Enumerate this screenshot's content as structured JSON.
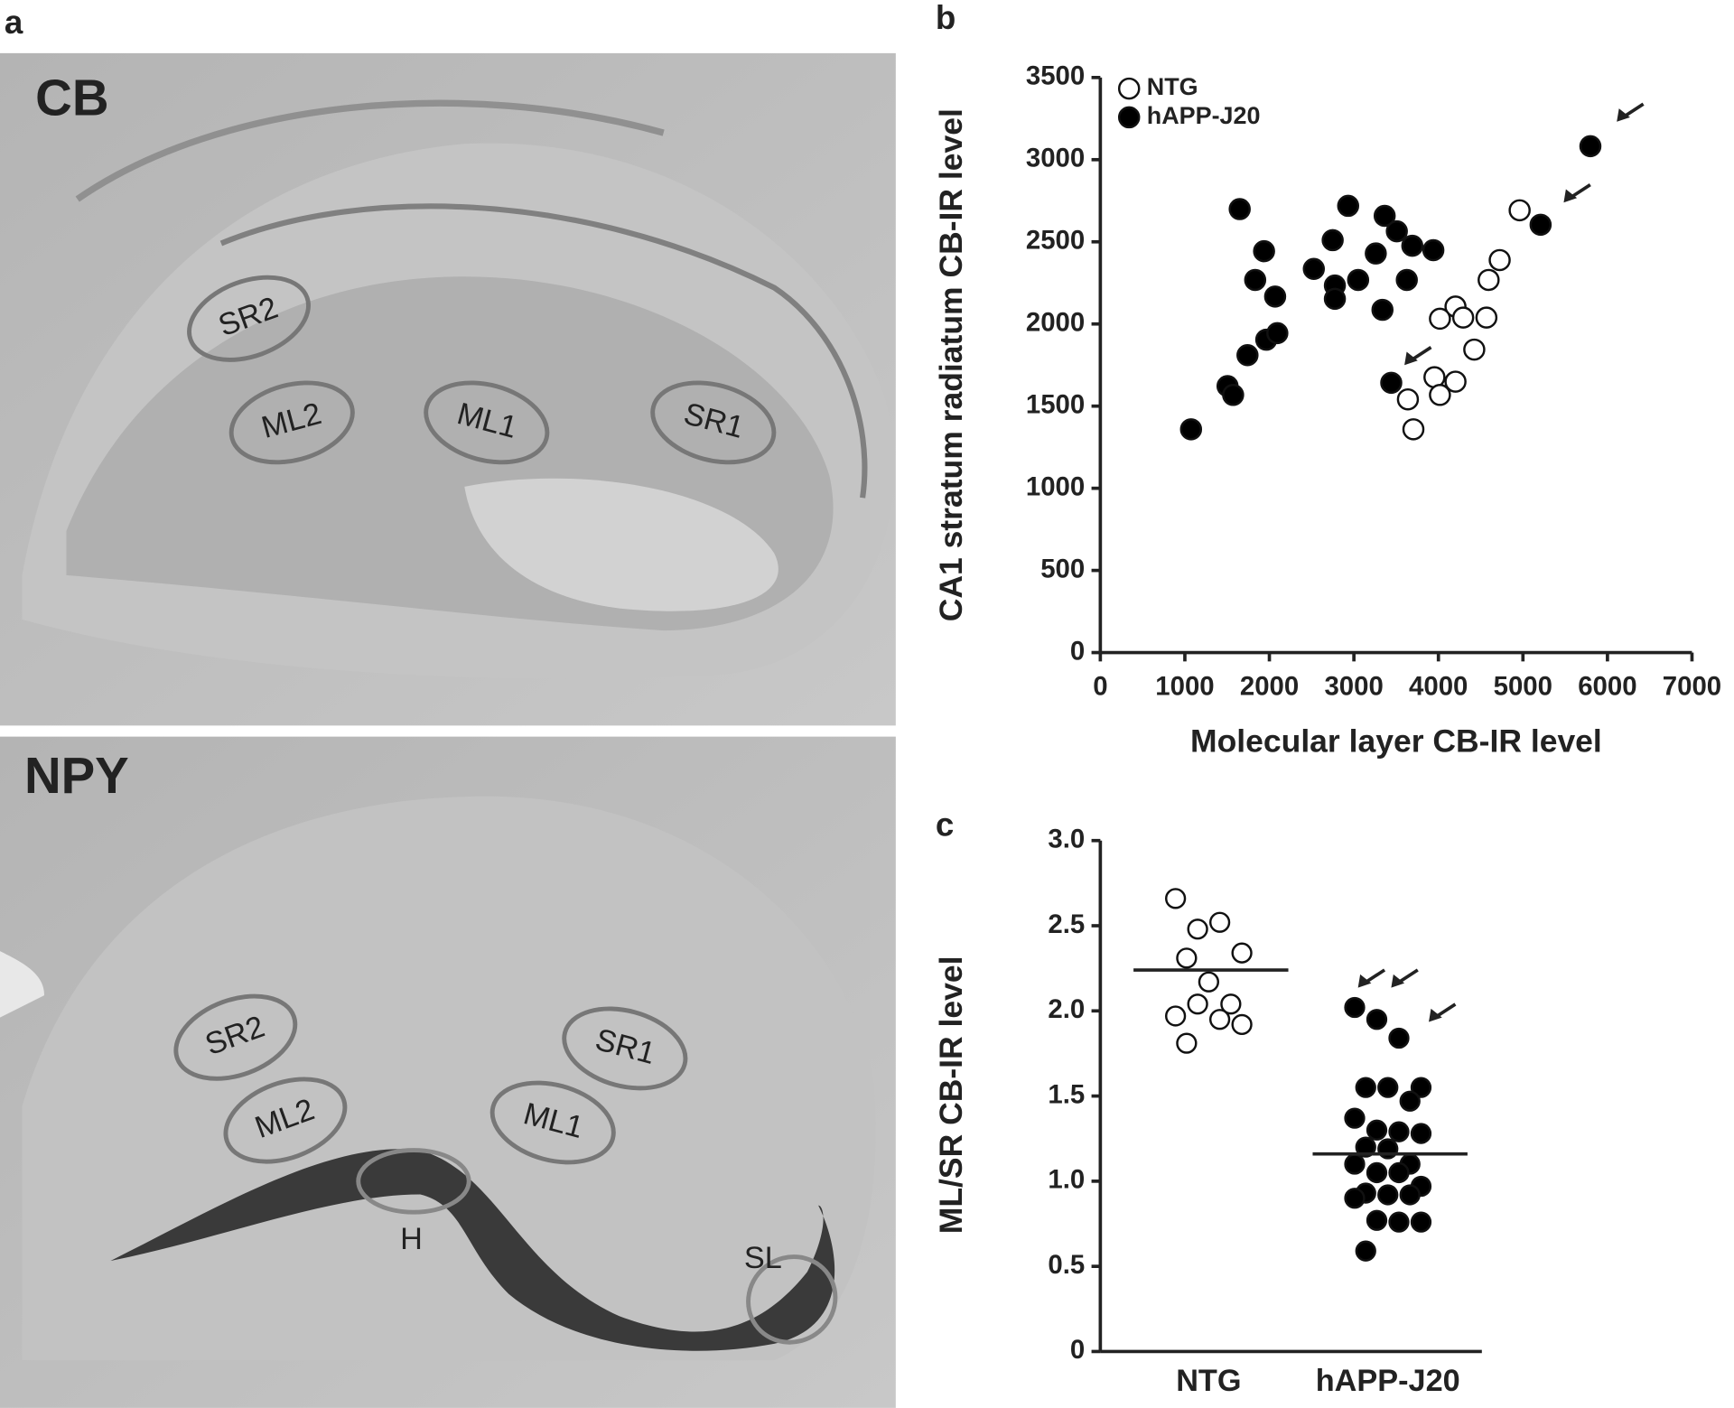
{
  "panel_labels": [
    "a",
    "b",
    "c"
  ],
  "micrographs": [
    {
      "stain": "CB",
      "regions": [
        "SR2",
        "ML2",
        "ML1",
        "SR1"
      ]
    },
    {
      "stain": "NPY",
      "regions": [
        "SR2",
        "SR1",
        "ML2",
        "ML1",
        "H",
        "SL"
      ]
    }
  ],
  "chart_data": [
    {
      "type": "scatter",
      "x_label": "Molecular layer CB-IR level",
      "y_label": "CA1 stratum radiatum CB-IR level",
      "xlim": [
        0,
        7000
      ],
      "ylim": [
        0,
        3500
      ],
      "xticks": [
        0,
        1000,
        2000,
        3000,
        4000,
        5000,
        6000,
        7000
      ],
      "yticks": [
        0,
        500,
        1000,
        1500,
        2000,
        2500,
        3000,
        3500
      ],
      "legend": "top-left",
      "series": [
        {
          "name": "NTG",
          "color": "#ffffff",
          "x": [
            4961,
            4725,
            4594,
            4202,
            4293,
            4568,
            4018,
            4424,
            3953,
            4202,
            4018,
            3639,
            3704
          ],
          "values": [
            2692,
            2389,
            2268,
            2106,
            2039,
            2039,
            2032,
            1844,
            1676,
            1649,
            1568,
            1541,
            1359
          ]
        },
        {
          "name": "hAPP-J20",
          "color": "#000000",
          "x": [
            1073,
            1505,
            1571,
            1649,
            1741,
            1832,
            1937,
            1963,
            2068,
            2094,
            2526,
            2749,
            2775,
            2775,
            2932,
            3050,
            3259,
            3364,
            3338,
            3508,
            3691,
            3626,
            3940,
            3442,
            5209,
            5798
          ],
          "values": [
            1359,
            1622,
            1568,
            2699,
            1810,
            2268,
            2443,
            1904,
            2167,
            1944,
            2335,
            2510,
            2234,
            2153,
            2719,
            2268,
            2429,
            2658,
            2086,
            2564,
            2476,
            2268,
            2449,
            1642,
            2604,
            3082
          ]
        }
      ]
    },
    {
      "type": "strip",
      "y_label": "ML/SR CB-IR level",
      "categories": [
        "NTG",
        "hAPP-J20"
      ],
      "ylim": [
        0,
        3
      ],
      "yticks": [
        0,
        0.5,
        {
          "value": 1,
          "label": "1.0"
        },
        1.5,
        {
          "value": 2,
          "label": "2.0"
        },
        2.5,
        {
          "value": 3,
          "label": "3.0"
        }
      ],
      "groups": [
        {
          "color": "#ffffff",
          "mean": 2.24,
          "values": [
            2.66,
            2.48,
            2.52,
            2.34,
            2.31,
            2.17,
            2.04,
            1.97,
            2.04,
            1.95,
            1.92,
            1.81
          ]
        },
        {
          "color": "#000000",
          "mean": 1.16,
          "values": [
            2.02,
            1.95,
            1.84,
            1.55,
            1.55,
            1.55,
            1.47,
            1.37,
            1.3,
            1.29,
            1.28,
            1.2,
            1.19,
            1.1,
            1.1,
            1.05,
            1.05,
            0.97,
            0.93,
            0.92,
            0.92,
            0.9,
            0.77,
            0.76,
            0.76,
            0.59
          ]
        }
      ]
    }
  ]
}
